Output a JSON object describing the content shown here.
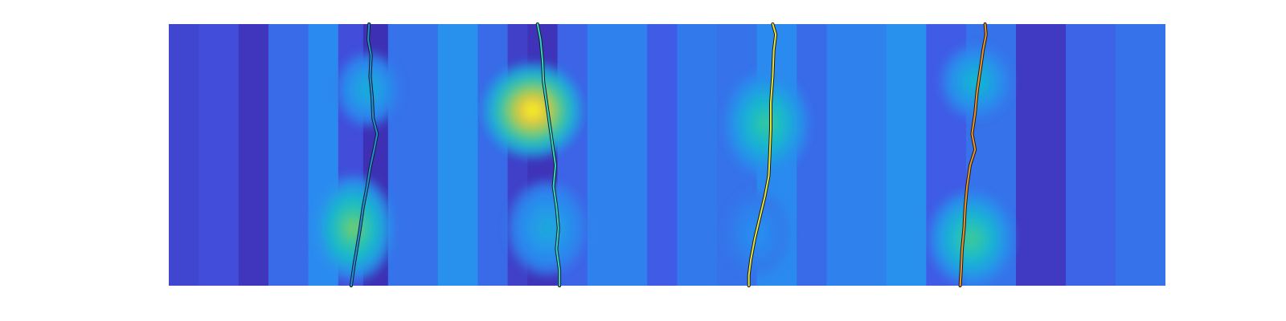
{
  "chart_data": {
    "type": "heatmap",
    "title": "",
    "xlabel": "",
    "ylabel": "",
    "axes_visible": false,
    "grid": false,
    "colormap": "parula",
    "colormap_stops": [
      "#3d26a8",
      "#4354e3",
      "#2a8cf0",
      "#15b8d1",
      "#37c99a",
      "#9dcb4c",
      "#f1c63b",
      "#f9fb14"
    ],
    "x_range": [
      0,
      100
    ],
    "y_range": [
      0,
      100
    ],
    "columns": [
      {
        "name": "col-1",
        "x0": 0,
        "x1": 3,
        "value": 0.1
      },
      {
        "name": "col-2",
        "x0": 3,
        "x1": 7,
        "value": 0.12
      },
      {
        "name": "col-3",
        "x0": 7,
        "x1": 10,
        "value": 0.05
      },
      {
        "name": "col-4",
        "x0": 10,
        "x1": 14,
        "value": 0.2
      },
      {
        "name": "col-5",
        "x0": 14,
        "x1": 17,
        "value": 0.28
      },
      {
        "name": "col-6",
        "x0": 17,
        "x1": 19.5,
        "value": 0.12
      },
      {
        "name": "col-7",
        "x0": 19.5,
        "x1": 22,
        "value": 0.03
      },
      {
        "name": "col-8",
        "x0": 22,
        "x1": 27,
        "value": 0.22
      },
      {
        "name": "col-9",
        "x0": 27,
        "x1": 31,
        "value": 0.3
      },
      {
        "name": "col-10",
        "x0": 31,
        "x1": 34,
        "value": 0.2
      },
      {
        "name": "col-11",
        "x0": 34,
        "x1": 36,
        "value": 0.08
      },
      {
        "name": "col-12",
        "x0": 36,
        "x1": 39,
        "value": 0.04
      },
      {
        "name": "col-13",
        "x0": 39,
        "x1": 42,
        "value": 0.18
      },
      {
        "name": "col-14",
        "x0": 42,
        "x1": 48,
        "value": 0.26
      },
      {
        "name": "col-15",
        "x0": 48,
        "x1": 51,
        "value": 0.16
      },
      {
        "name": "col-16",
        "x0": 51,
        "x1": 55,
        "value": 0.24
      },
      {
        "name": "col-17",
        "x0": 55,
        "x1": 59,
        "value": 0.22
      },
      {
        "name": "col-18",
        "x0": 59,
        "x1": 63,
        "value": 0.28
      },
      {
        "name": "col-19",
        "x0": 63,
        "x1": 66,
        "value": 0.2
      },
      {
        "name": "col-20",
        "x0": 66,
        "x1": 72,
        "value": 0.26
      },
      {
        "name": "col-21",
        "x0": 72,
        "x1": 76,
        "value": 0.3
      },
      {
        "name": "col-22",
        "x0": 76,
        "x1": 80,
        "value": 0.16
      },
      {
        "name": "col-23",
        "x0": 80,
        "x1": 85,
        "value": 0.22
      },
      {
        "name": "col-24",
        "x0": 85,
        "x1": 90,
        "value": 0.06
      },
      {
        "name": "col-25",
        "x0": 90,
        "x1": 95,
        "value": 0.18
      },
      {
        "name": "col-26",
        "x0": 95,
        "x1": 100,
        "value": 0.22
      }
    ],
    "hot_spots": [
      {
        "name": "spot-1-upper",
        "cx": 20,
        "cy": 25,
        "rx": 3.2,
        "ry": 14,
        "peak": 0.4
      },
      {
        "name": "spot-1-lower",
        "cx": 18.5,
        "cy": 78,
        "rx": 4.0,
        "ry": 20,
        "peak": 0.66
      },
      {
        "name": "spot-2-main",
        "cx": 36.5,
        "cy": 33,
        "rx": 5.0,
        "ry": 18,
        "peak": 0.98
      },
      {
        "name": "spot-2-lower",
        "cx": 38,
        "cy": 78,
        "rx": 4.0,
        "ry": 18,
        "peak": 0.38
      },
      {
        "name": "spot-3-main",
        "cx": 60,
        "cy": 38,
        "rx": 4.2,
        "ry": 20,
        "peak": 0.56
      },
      {
        "name": "spot-3-lower",
        "cx": 59,
        "cy": 80,
        "rx": 3.2,
        "ry": 16,
        "peak": 0.3
      },
      {
        "name": "spot-4-upper",
        "cx": 81,
        "cy": 22,
        "rx": 3.5,
        "ry": 14,
        "peak": 0.44
      },
      {
        "name": "spot-4-lower",
        "cx": 80.5,
        "cy": 82,
        "rx": 4.2,
        "ry": 18,
        "peak": 0.58
      }
    ],
    "series": [
      {
        "name": "trace-1",
        "color": "#1f8fd6",
        "points": [
          [
            20.1,
            0
          ],
          [
            20.0,
            6
          ],
          [
            20.3,
            12
          ],
          [
            20.2,
            20
          ],
          [
            20.4,
            28
          ],
          [
            20.5,
            36
          ],
          [
            20.9,
            42
          ],
          [
            20.6,
            48
          ],
          [
            20.2,
            55
          ],
          [
            19.9,
            62
          ],
          [
            19.5,
            70
          ],
          [
            19.2,
            78
          ],
          [
            18.9,
            85
          ],
          [
            18.6,
            92
          ],
          [
            18.3,
            100
          ]
        ]
      },
      {
        "name": "trace-2",
        "color": "#2fd6c0",
        "points": [
          [
            37.0,
            0
          ],
          [
            37.3,
            6
          ],
          [
            37.5,
            14
          ],
          [
            37.6,
            22
          ],
          [
            37.9,
            30
          ],
          [
            38.2,
            38
          ],
          [
            38.5,
            46
          ],
          [
            38.8,
            54
          ],
          [
            38.6,
            62
          ],
          [
            38.9,
            70
          ],
          [
            39.1,
            78
          ],
          [
            38.9,
            86
          ],
          [
            39.2,
            94
          ],
          [
            39.2,
            100
          ]
        ]
      },
      {
        "name": "trace-3",
        "color": "#e8e630",
        "points": [
          [
            60.6,
            0
          ],
          [
            60.9,
            4
          ],
          [
            60.7,
            10
          ],
          [
            60.6,
            20
          ],
          [
            60.4,
            30
          ],
          [
            60.4,
            40
          ],
          [
            60.3,
            50
          ],
          [
            60.2,
            58
          ],
          [
            59.8,
            66
          ],
          [
            59.3,
            74
          ],
          [
            58.8,
            82
          ],
          [
            58.4,
            90
          ],
          [
            58.2,
            96
          ],
          [
            58.2,
            100
          ]
        ]
      },
      {
        "name": "trace-4",
        "color": "#f3931c",
        "points": [
          [
            81.9,
            0
          ],
          [
            82.0,
            4
          ],
          [
            81.7,
            10
          ],
          [
            81.4,
            18
          ],
          [
            81.1,
            26
          ],
          [
            80.9,
            34
          ],
          [
            80.6,
            42
          ],
          [
            80.9,
            48
          ],
          [
            80.4,
            54
          ],
          [
            80.1,
            62
          ],
          [
            79.9,
            70
          ],
          [
            79.8,
            78
          ],
          [
            79.6,
            86
          ],
          [
            79.5,
            94
          ],
          [
            79.4,
            100
          ]
        ]
      }
    ]
  }
}
